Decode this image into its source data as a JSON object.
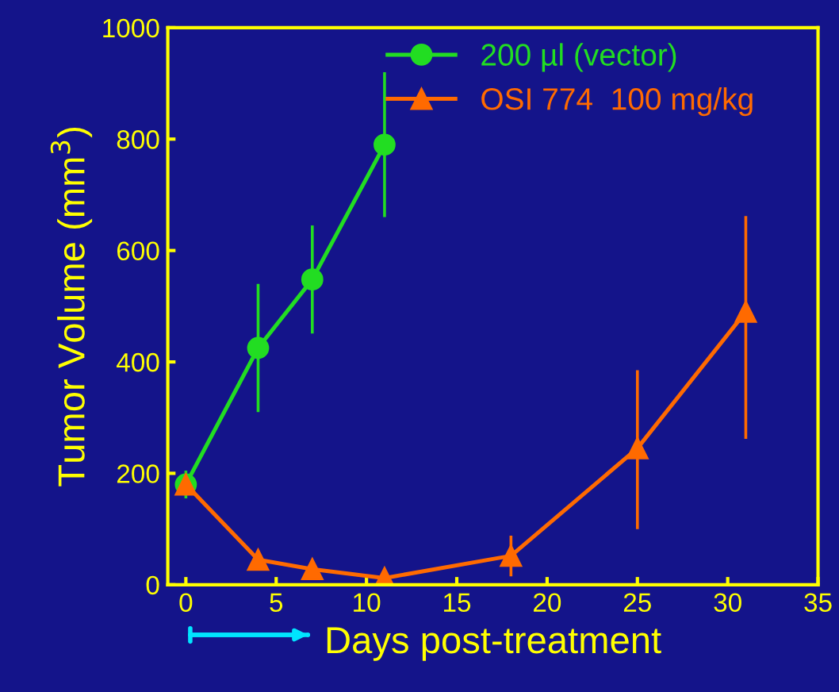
{
  "chart_data": {
    "type": "line",
    "xlabel": "Days post-treatment",
    "ylabel": "Tumor Volume (mm$^{3}$)",
    "xlim": [
      -1,
      35
    ],
    "ylim": [
      0,
      1000
    ],
    "xticks": [
      0,
      5,
      10,
      15,
      20,
      25,
      30,
      35
    ],
    "yticks": [
      0,
      200,
      400,
      600,
      800,
      1000
    ],
    "grid": false,
    "legend": "top center",
    "series": [
      {
        "name": "200 µl (vector)",
        "color": "#22dd22",
        "marker": "circle",
        "x": [
          0,
          4,
          7,
          11
        ],
        "values": [
          180,
          425,
          548,
          790
        ],
        "errors": [
          25,
          115,
          97,
          130
        ]
      },
      {
        "name": "OSI 774  100 mg/kg",
        "color": "#ff6a00",
        "marker": "triangle",
        "x": [
          0,
          4,
          7,
          11,
          18,
          25,
          31
        ],
        "values": [
          180,
          45,
          28,
          12,
          52,
          245,
          490
        ],
        "errors": [
          15,
          8,
          6,
          5,
          [
            15,
            88
          ],
          [
            100,
            385
          ],
          [
            262,
            662
          ]
        ]
      }
    ]
  }
}
